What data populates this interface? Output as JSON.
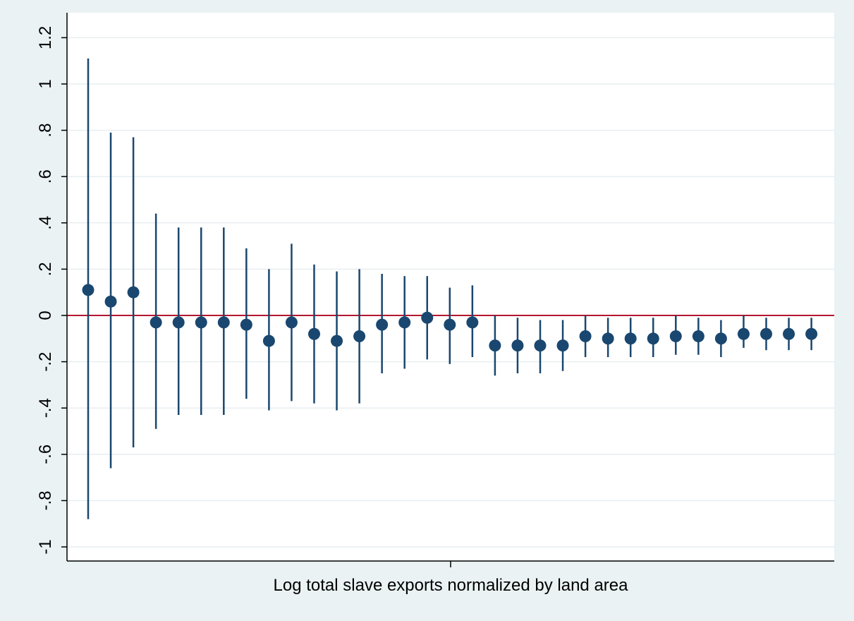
{
  "chart_data": {
    "type": "scatter",
    "xlabel": "Log total slave exports normalized by land area",
    "ylabel": "",
    "ylim": [
      -1.05,
      1.25
    ],
    "yticks": [
      1.2,
      1,
      0.8,
      0.6,
      0.4,
      0.2,
      0,
      -0.2,
      -0.4,
      -0.6,
      -0.8,
      -1
    ],
    "ytick_labels": [
      "1.2",
      "1",
      ".8",
      ".6",
      ".4",
      ".2",
      "0",
      "-.2",
      "-.4",
      "-.6",
      "-.8",
      "-1"
    ],
    "grid": true,
    "reference_line": 0,
    "series": [
      {
        "points": [
          {
            "estimate": 0.11,
            "ci_low": -0.88,
            "ci_high": 1.11
          },
          {
            "estimate": 0.06,
            "ci_low": -0.66,
            "ci_high": 0.79
          },
          {
            "estimate": 0.1,
            "ci_low": -0.57,
            "ci_high": 0.77
          },
          {
            "estimate": -0.03,
            "ci_low": -0.49,
            "ci_high": 0.44
          },
          {
            "estimate": -0.03,
            "ci_low": -0.43,
            "ci_high": 0.38
          },
          {
            "estimate": -0.03,
            "ci_low": -0.43,
            "ci_high": 0.38
          },
          {
            "estimate": -0.03,
            "ci_low": -0.43,
            "ci_high": 0.38
          },
          {
            "estimate": -0.04,
            "ci_low": -0.36,
            "ci_high": 0.29
          },
          {
            "estimate": -0.11,
            "ci_low": -0.41,
            "ci_high": 0.2
          },
          {
            "estimate": -0.03,
            "ci_low": -0.37,
            "ci_high": 0.31
          },
          {
            "estimate": -0.08,
            "ci_low": -0.38,
            "ci_high": 0.22
          },
          {
            "estimate": -0.11,
            "ci_low": -0.41,
            "ci_high": 0.19
          },
          {
            "estimate": -0.09,
            "ci_low": -0.38,
            "ci_high": 0.2
          },
          {
            "estimate": -0.04,
            "ci_low": -0.25,
            "ci_high": 0.18
          },
          {
            "estimate": -0.03,
            "ci_low": -0.23,
            "ci_high": 0.17
          },
          {
            "estimate": -0.01,
            "ci_low": -0.19,
            "ci_high": 0.17
          },
          {
            "estimate": -0.04,
            "ci_low": -0.21,
            "ci_high": 0.12
          },
          {
            "estimate": -0.03,
            "ci_low": -0.18,
            "ci_high": 0.13
          },
          {
            "estimate": -0.13,
            "ci_low": -0.26,
            "ci_high": 0.0
          },
          {
            "estimate": -0.13,
            "ci_low": -0.25,
            "ci_high": -0.01
          },
          {
            "estimate": -0.13,
            "ci_low": -0.25,
            "ci_high": -0.02
          },
          {
            "estimate": -0.13,
            "ci_low": -0.24,
            "ci_high": -0.02
          },
          {
            "estimate": -0.09,
            "ci_low": -0.18,
            "ci_high": 0.0
          },
          {
            "estimate": -0.1,
            "ci_low": -0.18,
            "ci_high": -0.01
          },
          {
            "estimate": -0.1,
            "ci_low": -0.18,
            "ci_high": -0.01
          },
          {
            "estimate": -0.1,
            "ci_low": -0.18,
            "ci_high": -0.01
          },
          {
            "estimate": -0.09,
            "ci_low": -0.17,
            "ci_high": 0.0
          },
          {
            "estimate": -0.09,
            "ci_low": -0.17,
            "ci_high": -0.01
          },
          {
            "estimate": -0.1,
            "ci_low": -0.18,
            "ci_high": -0.02
          },
          {
            "estimate": -0.08,
            "ci_low": -0.14,
            "ci_high": 0.0
          },
          {
            "estimate": -0.08,
            "ci_low": -0.15,
            "ci_high": -0.01
          },
          {
            "estimate": -0.08,
            "ci_low": -0.15,
            "ci_high": -0.01
          },
          {
            "estimate": -0.08,
            "ci_low": -0.15,
            "ci_high": -0.01
          }
        ]
      }
    ],
    "colors": {
      "outer_background": "#eaf2f3",
      "plot_background": "#ffffff",
      "grid": "#e8eef0",
      "marker": "#1a476f",
      "reference_line": "#b5172f",
      "axis": "#000000"
    }
  }
}
